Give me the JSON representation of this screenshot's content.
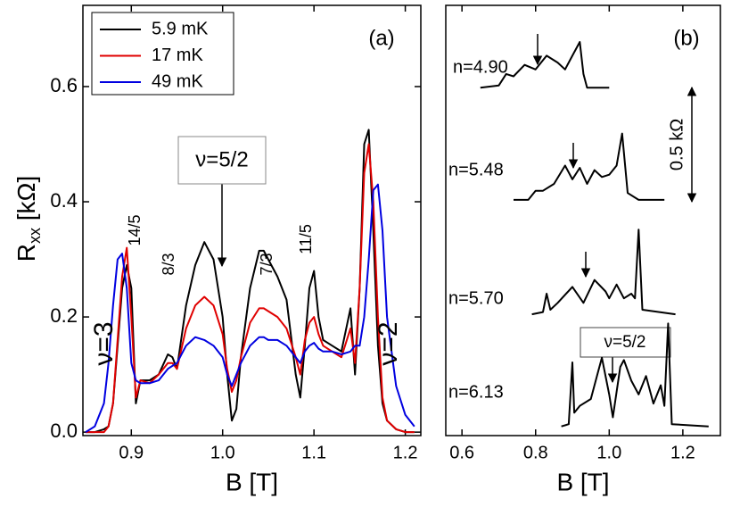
{
  "chart_data": [
    {
      "type": "line",
      "panel": "a",
      "xlabel": "B [T]",
      "ylabel": [
        "R",
        "xx",
        " [kΩ]"
      ],
      "x": [
        0.85,
        0.86,
        0.87,
        0.875,
        0.88,
        0.885,
        0.89,
        0.895,
        0.9,
        0.905,
        0.91,
        0.92,
        0.93,
        0.94,
        0.945,
        0.95,
        0.96,
        0.97,
        0.98,
        0.99,
        1.0,
        1.005,
        1.01,
        1.015,
        1.02,
        1.03,
        1.04,
        1.045,
        1.05,
        1.06,
        1.07,
        1.08,
        1.085,
        1.09,
        1.095,
        1.1,
        1.105,
        1.11,
        1.12,
        1.13,
        1.14,
        1.145,
        1.15,
        1.155,
        1.16,
        1.165,
        1.17,
        1.175,
        1.18,
        1.19,
        1.2,
        1.21
      ],
      "series": [
        {
          "name": "5.9 mK",
          "color": "#000000",
          "values": [
            0,
            0,
            0.005,
            0.01,
            0.05,
            0.15,
            0.25,
            0.29,
            0.25,
            0.05,
            0.09,
            0.09,
            0.1,
            0.135,
            0.13,
            0.11,
            0.22,
            0.29,
            0.33,
            0.3,
            0.2,
            0.1,
            0.02,
            0.04,
            0.13,
            0.25,
            0.315,
            0.315,
            0.3,
            0.27,
            0.23,
            0.1,
            0.06,
            0.15,
            0.25,
            0.28,
            0.2,
            0.16,
            0.15,
            0.14,
            0.215,
            0.1,
            0.25,
            0.5,
            0.525,
            0.35,
            0.15,
            0.05,
            0.02,
            0.005,
            0,
            0
          ]
        },
        {
          "name": "17  mK",
          "color": "#e00000",
          "values": [
            0,
            0,
            0,
            0.01,
            0.05,
            0.16,
            0.27,
            0.32,
            0.2,
            0.06,
            0.09,
            0.085,
            0.1,
            0.12,
            0.12,
            0.11,
            0.18,
            0.22,
            0.235,
            0.22,
            0.17,
            0.11,
            0.07,
            0.09,
            0.13,
            0.19,
            0.215,
            0.215,
            0.21,
            0.2,
            0.18,
            0.13,
            0.1,
            0.16,
            0.19,
            0.2,
            0.17,
            0.15,
            0.14,
            0.13,
            0.18,
            0.12,
            0.25,
            0.45,
            0.5,
            0.4,
            0.2,
            0.06,
            0.02,
            0.005,
            0,
            0
          ]
        },
        {
          "name": "49  mK",
          "color": "#0000e0",
          "values": [
            0,
            0.01,
            0.05,
            0.12,
            0.22,
            0.3,
            0.31,
            0.25,
            0.12,
            0.09,
            0.085,
            0.085,
            0.09,
            0.11,
            0.115,
            0.12,
            0.15,
            0.165,
            0.16,
            0.15,
            0.13,
            0.1,
            0.08,
            0.1,
            0.12,
            0.15,
            0.165,
            0.165,
            0.16,
            0.16,
            0.15,
            0.13,
            0.12,
            0.14,
            0.15,
            0.155,
            0.145,
            0.14,
            0.14,
            0.135,
            0.14,
            0.15,
            0.15,
            0.2,
            0.3,
            0.42,
            0.43,
            0.35,
            0.2,
            0.08,
            0.03,
            0.01
          ]
        }
      ],
      "xlim": [
        0.847,
        1.217
      ],
      "ylim": [
        -0.006,
        0.741
      ],
      "xticks": [
        0.9,
        {
          "value": 1,
          "label": "1.0"
        },
        1.1,
        1.2
      ],
      "yticks": [
        {
          "value": 0,
          "label": "0.0"
        },
        0.2,
        0.4,
        0.6
      ],
      "legend": "upper left",
      "annotations": [
        "(a)",
        "ν=5/2",
        "14/5",
        "8/3",
        "7/3",
        "11/5",
        "ν=3",
        "ν=2"
      ]
    },
    {
      "type": "line",
      "panel": "b",
      "xlabel": "B [T]",
      "series": [
        {
          "name": "n=4.90",
          "color": "#000000",
          "x": [
            0.65,
            0.7,
            0.72,
            0.74,
            0.77,
            0.8,
            0.83,
            0.86,
            0.88,
            0.9,
            0.92,
            0.93,
            0.94,
            1.0
          ],
          "values": [
            1.52,
            1.53,
            1.58,
            1.57,
            1.62,
            1.6,
            1.66,
            1.63,
            1.6,
            1.66,
            1.72,
            1.58,
            1.52,
            1.52
          ]
        },
        {
          "name": "n=5.48",
          "color": "#000000",
          "x": [
            0.74,
            0.78,
            0.8,
            0.82,
            0.85,
            0.88,
            0.9,
            0.92,
            0.94,
            0.96,
            0.98,
            1.0,
            1.02,
            1.035,
            1.05,
            1.08,
            1.15
          ],
          "values": [
            1.03,
            1.03,
            1.07,
            1.07,
            1.1,
            1.18,
            1.12,
            1.17,
            1.1,
            1.16,
            1.13,
            1.14,
            1.18,
            1.32,
            1.06,
            1.03,
            1.03
          ]
        },
        {
          "name": "n=5.70",
          "color": "#000000",
          "x": [
            0.79,
            0.82,
            0.83,
            0.84,
            0.86,
            0.9,
            0.93,
            0.96,
            0.99,
            1.0,
            1.02,
            1.04,
            1.06,
            1.07,
            1.08,
            1.09,
            1.18
          ],
          "values": [
            0.53,
            0.54,
            0.62,
            0.55,
            0.58,
            0.65,
            0.58,
            0.68,
            0.63,
            0.6,
            0.66,
            0.6,
            0.62,
            0.6,
            0.9,
            0.55,
            0.53
          ]
        },
        {
          "name": "n=6.13",
          "color": "#000000",
          "x": [
            0.87,
            0.89,
            0.9,
            0.905,
            0.92,
            0.95,
            0.97,
            0.98,
            1.0,
            1.01,
            1.03,
            1.04,
            1.06,
            1.08,
            1.1,
            1.12,
            1.14,
            1.15,
            1.16,
            1.17,
            1.27
          ],
          "values": [
            0.04,
            0.05,
            0.32,
            0.1,
            0.13,
            0.16,
            0.28,
            0.34,
            0.18,
            0.08,
            0.3,
            0.33,
            0.24,
            0.18,
            0.26,
            0.14,
            0.22,
            0.13,
            0.49,
            0.05,
            0.04
          ]
        }
      ],
      "xlim": [
        0.556,
        1.302
      ],
      "ylim": [
        0,
        1.88
      ],
      "xticks": [
        0.6,
        0.8,
        {
          "value": 1,
          "label": "1.0"
        },
        1.2
      ],
      "annotations": [
        "(b)",
        "0.5 kΩ",
        "ν=5/2"
      ]
    }
  ]
}
